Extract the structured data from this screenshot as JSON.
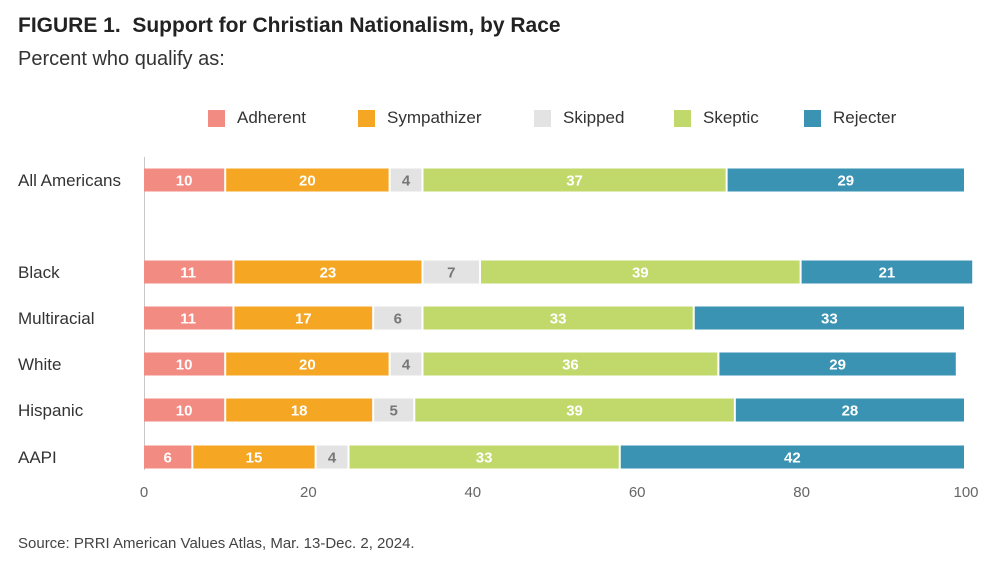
{
  "title": "FIGURE 1.  Support for Christian Nationalism, by Race",
  "subtitle": "Percent who qualify as:",
  "source": "Source: PRRI American Values Atlas, Mar. 13-Dec. 2, 2024.",
  "legend": {
    "items": [
      {
        "label": "Adherent",
        "color": "#f28b82"
      },
      {
        "label": "Sympathizer",
        "color": "#f5a623"
      },
      {
        "label": "Skipped",
        "color": "#e3e3e3"
      },
      {
        "label": "Skeptic",
        "color": "#c0d96a"
      },
      {
        "label": "Rejecter",
        "color": "#3a93b3"
      }
    ]
  },
  "chart_data": {
    "type": "bar",
    "orientation": "horizontal",
    "stacked": true,
    "title": "Support for Christian Nationalism, by Race",
    "xlabel": "",
    "ylabel": "",
    "xlim": [
      0,
      100
    ],
    "xticks": [
      0,
      20,
      40,
      60,
      80,
      100
    ],
    "categories": [
      "All Americans",
      "Black",
      "Multiracial",
      "White",
      "Hispanic",
      "AAPI"
    ],
    "series": [
      {
        "name": "Adherent",
        "color": "#f28b82",
        "label_color": "#ffffff",
        "values": [
          10,
          11,
          11,
          10,
          10,
          6
        ]
      },
      {
        "name": "Sympathizer",
        "color": "#f5a623",
        "label_color": "#ffffff",
        "values": [
          20,
          23,
          17,
          20,
          18,
          15
        ]
      },
      {
        "name": "Skipped",
        "color": "#e3e3e3",
        "label_color": "#777777",
        "values": [
          4,
          7,
          6,
          4,
          5,
          4
        ]
      },
      {
        "name": "Skeptic",
        "color": "#c0d96a",
        "label_color": "#ffffff",
        "values": [
          37,
          39,
          33,
          36,
          39,
          33
        ]
      },
      {
        "name": "Rejecter",
        "color": "#3a93b3",
        "label_color": "#ffffff",
        "values": [
          29,
          21,
          33,
          29,
          28,
          42
        ]
      }
    ]
  }
}
